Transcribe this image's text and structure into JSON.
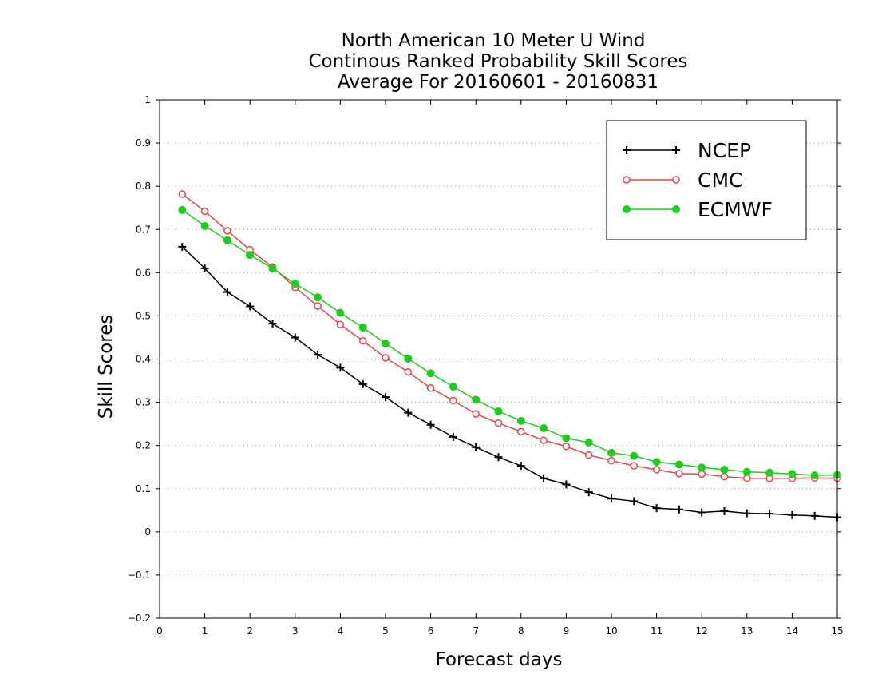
{
  "chart_data": {
    "type": "line",
    "title": [
      "North American 10 Meter U Wind",
      "Continous Ranked Probability Skill Scores",
      "Average For 20160601 - 20160831"
    ],
    "xlabel": "Forecast days",
    "ylabel": "Skill Scores",
    "xlim": [
      0,
      15
    ],
    "ylim": [
      -0.2,
      1
    ],
    "xticks": [
      "0",
      "1",
      "2",
      "3",
      "4",
      "5",
      "6",
      "7",
      "8",
      "9",
      "10",
      "11",
      "12",
      "13",
      "14",
      "15"
    ],
    "yticks": [
      "-0.2",
      "-0.1",
      "0",
      "0.1",
      "0.2",
      "0.3",
      "0.4",
      "0.5",
      "0.6",
      "0.7",
      "0.8",
      "0.9",
      "1"
    ],
    "grid": "horizontal dotted",
    "legend_position": "top-right",
    "x": [
      0.5,
      1,
      1.5,
      2,
      2.5,
      3,
      3.5,
      4,
      4.5,
      5,
      5.5,
      6,
      6.5,
      7,
      7.5,
      8,
      8.5,
      9,
      9.5,
      10,
      10.5,
      11,
      11.5,
      12,
      12.5,
      13,
      13.5,
      14,
      14.5,
      15
    ],
    "series": [
      {
        "name": "NCEP",
        "color": "#000000",
        "marker": "plus",
        "values": [
          0.66,
          0.61,
          0.555,
          0.522,
          0.482,
          0.45,
          0.41,
          0.38,
          0.342,
          0.312,
          0.276,
          0.248,
          0.22,
          0.196,
          0.173,
          0.153,
          0.124,
          0.11,
          0.092,
          0.077,
          0.071,
          0.055,
          0.052,
          0.045,
          0.048,
          0.043,
          0.042,
          0.039,
          0.037,
          0.034
        ]
      },
      {
        "name": "CMC",
        "color": "#e8434b",
        "marker": "open-circle",
        "values": [
          0.782,
          0.742,
          0.697,
          0.653,
          0.613,
          0.566,
          0.523,
          0.48,
          0.442,
          0.403,
          0.37,
          0.333,
          0.304,
          0.273,
          0.252,
          0.232,
          0.212,
          0.198,
          0.178,
          0.165,
          0.153,
          0.144,
          0.135,
          0.134,
          0.128,
          0.124,
          0.124,
          0.124,
          0.125,
          0.124
        ]
      },
      {
        "name": "ECMWF",
        "color": "#1fcb1f",
        "marker": "filled-circle",
        "values": [
          0.745,
          0.708,
          0.675,
          0.641,
          0.61,
          0.574,
          0.543,
          0.507,
          0.473,
          0.436,
          0.401,
          0.367,
          0.336,
          0.306,
          0.279,
          0.257,
          0.24,
          0.217,
          0.207,
          0.183,
          0.176,
          0.162,
          0.156,
          0.149,
          0.144,
          0.139,
          0.137,
          0.134,
          0.131,
          0.132
        ]
      }
    ]
  }
}
